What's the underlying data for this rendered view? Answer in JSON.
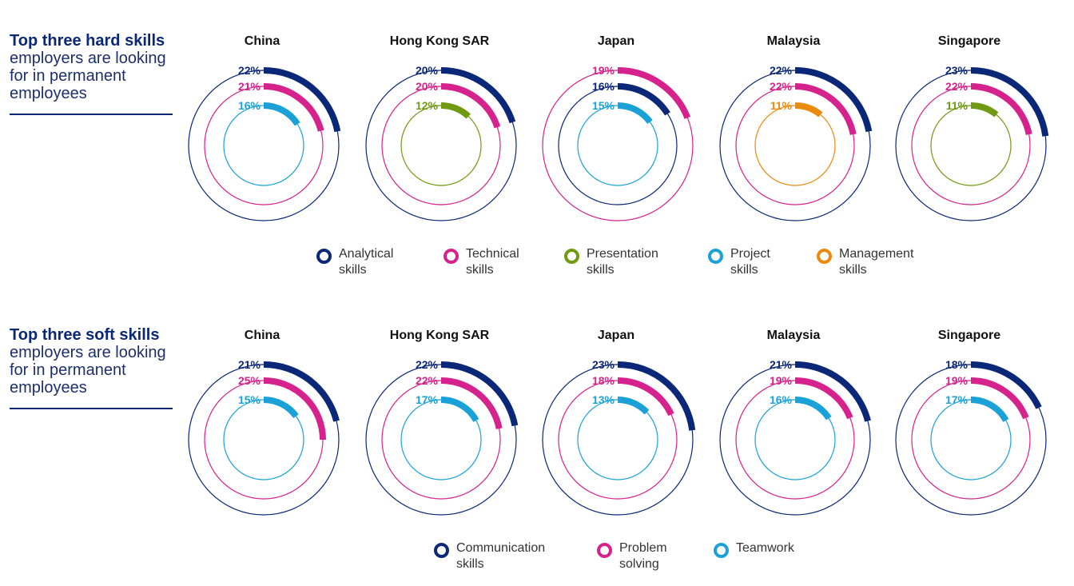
{
  "hard": {
    "title_bold": "Top three hard skills",
    "title_rest_lines": [
      "employers are looking",
      "for in permanent",
      "employees"
    ],
    "legend": [
      {
        "lines": [
          "Analytical",
          "skills"
        ],
        "color": "#0b2878"
      },
      {
        "lines": [
          "Technical",
          "skills"
        ],
        "color": "#d6228c"
      },
      {
        "lines": [
          "Presentation",
          "skills"
        ],
        "color": "#6f9a12"
      },
      {
        "lines": [
          "Project",
          "skills"
        ],
        "color": "#1aa2d8"
      },
      {
        "lines": [
          "Management",
          "skills"
        ],
        "color": "#ea8a0f"
      }
    ]
  },
  "soft": {
    "title_bold": "Top three soft skills",
    "title_rest_lines": [
      "employers are looking",
      "for in permanent",
      "employees"
    ],
    "legend": [
      {
        "lines": [
          "Communication",
          "skills"
        ],
        "color": "#0b2878"
      },
      {
        "lines": [
          "Problem",
          "solving"
        ],
        "color": "#d6228c"
      },
      {
        "lines": [
          "Teamwork"
        ],
        "color": "#1aa2d8"
      }
    ]
  },
  "chart_data": [
    {
      "type": "radial-bar",
      "title": "Top three hard skills employers are looking for in permanent employees",
      "unit": "%",
      "panels": [
        {
          "region": "China",
          "rings": [
            {
              "skill": "Analytical skills",
              "value": 22,
              "label": "22%",
              "color": "#0b2878"
            },
            {
              "skill": "Technical skills",
              "value": 21,
              "label": "21%",
              "color": "#d6228c"
            },
            {
              "skill": "Project skills",
              "value": 16,
              "label": "16%",
              "color": "#1aa2d8"
            }
          ]
        },
        {
          "region": "Hong Kong SAR",
          "rings": [
            {
              "skill": "Analytical skills",
              "value": 20,
              "label": "20%",
              "color": "#0b2878"
            },
            {
              "skill": "Technical skills",
              "value": 20,
              "label": "20%",
              "color": "#d6228c"
            },
            {
              "skill": "Presentation skills",
              "value": 12,
              "label": "12%",
              "color": "#6f9a12"
            }
          ]
        },
        {
          "region": "Japan",
          "rings": [
            {
              "skill": "Technical skills",
              "value": 19,
              "label": "19%",
              "color": "#d6228c"
            },
            {
              "skill": "Analytical skills",
              "value": 16,
              "label": "16%",
              "color": "#0b2878"
            },
            {
              "skill": "Project skills",
              "value": 15,
              "label": "15%",
              "color": "#1aa2d8"
            }
          ]
        },
        {
          "region": "Malaysia",
          "rings": [
            {
              "skill": "Analytical skills",
              "value": 22,
              "label": "22%",
              "color": "#0b2878"
            },
            {
              "skill": "Technical skills",
              "value": 22,
              "label": "22%",
              "color": "#d6228c"
            },
            {
              "skill": "Management skills",
              "value": 11,
              "label": "11%",
              "color": "#ea8a0f"
            }
          ]
        },
        {
          "region": "Singapore",
          "rings": [
            {
              "skill": "Analytical skills",
              "value": 23,
              "label": "23%",
              "color": "#0b2878"
            },
            {
              "skill": "Technical skills",
              "value": 22,
              "label": "22%",
              "color": "#d6228c"
            },
            {
              "skill": "Presentation skills",
              "value": 11,
              "label": "11%",
              "color": "#6f9a12"
            }
          ]
        }
      ]
    },
    {
      "type": "radial-bar",
      "title": "Top three soft skills employers are looking for in permanent employees",
      "unit": "%",
      "panels": [
        {
          "region": "China",
          "rings": [
            {
              "skill": "Communication skills",
              "value": 21,
              "label": "21%",
              "color": "#0b2878"
            },
            {
              "skill": "Problem solving",
              "value": 25,
              "label": "25%",
              "color": "#d6228c"
            },
            {
              "skill": "Teamwork",
              "value": 15,
              "label": "15%",
              "color": "#1aa2d8"
            }
          ]
        },
        {
          "region": "Hong Kong SAR",
          "rings": [
            {
              "skill": "Communication skills",
              "value": 22,
              "label": "22%",
              "color": "#0b2878"
            },
            {
              "skill": "Problem solving",
              "value": 22,
              "label": "22%",
              "color": "#d6228c"
            },
            {
              "skill": "Teamwork",
              "value": 17,
              "label": "17%",
              "color": "#1aa2d8"
            }
          ]
        },
        {
          "region": "Japan",
          "rings": [
            {
              "skill": "Communication skills",
              "value": 23,
              "label": "23%",
              "color": "#0b2878"
            },
            {
              "skill": "Problem solving",
              "value": 18,
              "label": "18%",
              "color": "#d6228c"
            },
            {
              "skill": "Teamwork",
              "value": 13,
              "label": "13%",
              "color": "#1aa2d8"
            }
          ]
        },
        {
          "region": "Malaysia",
          "rings": [
            {
              "skill": "Communication skills",
              "value": 21,
              "label": "21%",
              "color": "#0b2878"
            },
            {
              "skill": "Problem solving",
              "value": 19,
              "label": "19%",
              "color": "#d6228c"
            },
            {
              "skill": "Teamwork",
              "value": 16,
              "label": "16%",
              "color": "#1aa2d8"
            }
          ]
        },
        {
          "region": "Singapore",
          "rings": [
            {
              "skill": "Communication skills",
              "value": 18,
              "label": "18%",
              "color": "#0b2878"
            },
            {
              "skill": "Problem solving",
              "value": 19,
              "label": "19%",
              "color": "#d6228c"
            },
            {
              "skill": "Teamwork",
              "value": 17,
              "label": "17%",
              "color": "#1aa2d8"
            }
          ]
        }
      ]
    }
  ]
}
